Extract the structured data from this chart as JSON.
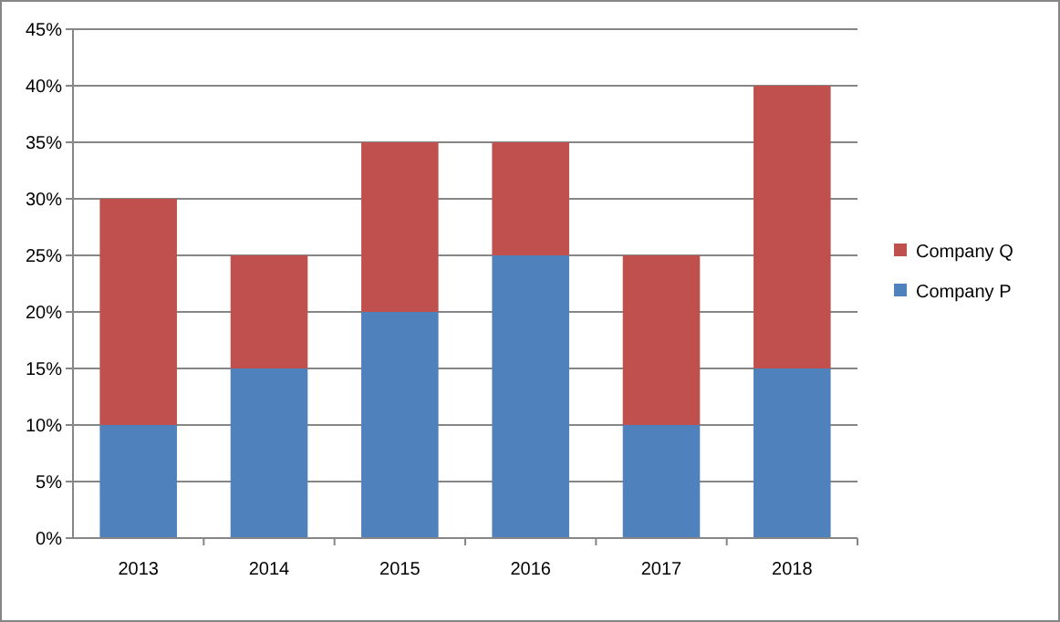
{
  "chart_data": {
    "type": "bar",
    "stacked": true,
    "categories": [
      "2013",
      "2014",
      "2015",
      "2016",
      "2017",
      "2018"
    ],
    "series": [
      {
        "name": "Company P",
        "color": "#4f81bd",
        "values": [
          10,
          15,
          20,
          25,
          10,
          15
        ]
      },
      {
        "name": "Company Q",
        "color": "#c0504d",
        "values": [
          20,
          10,
          15,
          10,
          15,
          25
        ]
      }
    ],
    "ylim": [
      0,
      45
    ],
    "yticks": [
      {
        "value": 0,
        "label": "0%"
      },
      {
        "value": 5,
        "label": "5%"
      },
      {
        "value": 10,
        "label": "10%"
      },
      {
        "value": 15,
        "label": "15%"
      },
      {
        "value": 20,
        "label": "20%"
      },
      {
        "value": 25,
        "label": "25%"
      },
      {
        "value": 30,
        "label": "30%"
      },
      {
        "value": 35,
        "label": "35%"
      },
      {
        "value": 40,
        "label": "40%"
      },
      {
        "value": 45,
        "label": "45%"
      }
    ],
    "grid": "y",
    "legend": "right"
  }
}
